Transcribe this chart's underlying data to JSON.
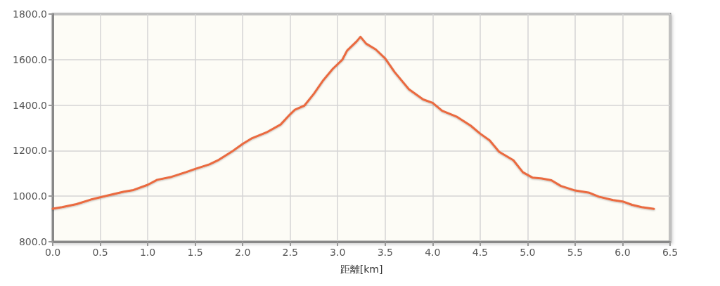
{
  "chart_data": {
    "type": "line",
    "xlabel": "距離[km]",
    "x": [
      0,
      0.1,
      0.25,
      0.4,
      0.5,
      0.6,
      0.75,
      0.85,
      1.0,
      1.1,
      1.25,
      1.4,
      1.5,
      1.65,
      1.75,
      1.9,
      2.0,
      2.1,
      2.25,
      2.4,
      2.5,
      2.55,
      2.65,
      2.75,
      2.85,
      2.95,
      3.05,
      3.1,
      3.2,
      3.24,
      3.3,
      3.4,
      3.5,
      3.6,
      3.75,
      3.9,
      4.0,
      4.1,
      4.25,
      4.4,
      4.5,
      4.6,
      4.7,
      4.85,
      4.95,
      5.05,
      5.15,
      5.25,
      5.35,
      5.5,
      5.65,
      5.75,
      5.9,
      6.0,
      6.1,
      6.2,
      6.33
    ],
    "series": [
      {
        "color": "#ea6a3f",
        "values": [
          945,
          952,
          965,
          985,
          995,
          1005,
          1020,
          1027,
          1050,
          1072,
          1085,
          1105,
          1120,
          1140,
          1160,
          1200,
          1230,
          1255,
          1280,
          1315,
          1360,
          1380,
          1398,
          1450,
          1510,
          1560,
          1600,
          1640,
          1680,
          1700,
          1670,
          1645,
          1605,
          1545,
          1470,
          1425,
          1410,
          1375,
          1350,
          1310,
          1275,
          1245,
          1195,
          1158,
          1105,
          1082,
          1078,
          1070,
          1045,
          1025,
          1015,
          998,
          983,
          977,
          962,
          952,
          944
        ]
      }
    ],
    "xlim": [
      0,
      6.5
    ],
    "ylim": [
      800,
      1800
    ],
    "xticks": [
      {
        "value": 0,
        "label": "0.0"
      },
      {
        "value": 0.5,
        "label": "0.5"
      },
      {
        "value": 1,
        "label": "1.0"
      },
      {
        "value": 1.5,
        "label": "1.5"
      },
      {
        "value": 2,
        "label": "2.0"
      },
      {
        "value": 2.5,
        "label": "2.5"
      },
      {
        "value": 3,
        "label": "3.0"
      },
      {
        "value": 3.5,
        "label": "3.5"
      },
      {
        "value": 4,
        "label": "4.0"
      },
      {
        "value": 4.5,
        "label": "4.5"
      },
      {
        "value": 5,
        "label": "5.0"
      },
      {
        "value": 5.5,
        "label": "5.5"
      },
      {
        "value": 6,
        "label": "6.0"
      },
      {
        "value": 6.5,
        "label": "6.5"
      }
    ],
    "yticks": [
      {
        "value": 800,
        "label": "800.0"
      },
      {
        "value": 1000,
        "label": "1000.0"
      },
      {
        "value": 1200,
        "label": "1200.0"
      },
      {
        "value": 1400,
        "label": "1400.0"
      },
      {
        "value": 1600,
        "label": "1600.0"
      },
      {
        "value": 1800,
        "label": "1800.0"
      }
    ],
    "grid": true,
    "marker": "none",
    "line_style": "solid"
  }
}
